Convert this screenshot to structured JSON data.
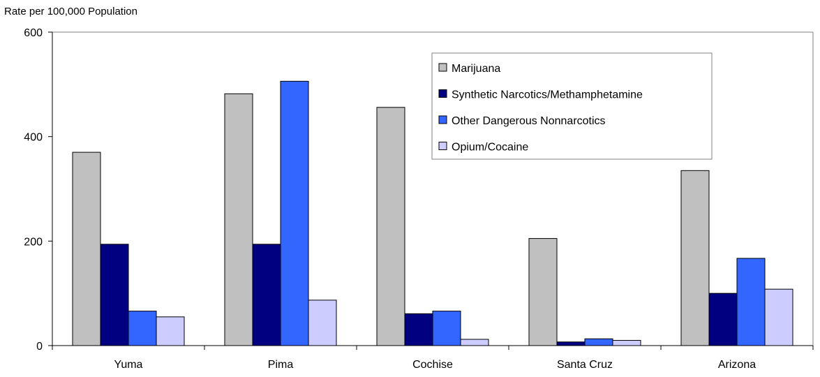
{
  "chart_data": {
    "type": "bar",
    "title": "",
    "xlabel": "",
    "ylabel": "Rate per 100,000 Population",
    "ylim": [
      0,
      600
    ],
    "yticks": [
      0,
      200,
      400,
      600
    ],
    "grid": false,
    "legend_position": "top-right",
    "categories": [
      "Yuma",
      "Pima",
      "Cochise",
      "Santa Cruz",
      "Arizona"
    ],
    "series": [
      {
        "name": "Marijuana",
        "color": "#c0c0c0",
        "values": [
          370,
          482,
          456,
          205,
          335
        ]
      },
      {
        "name": "Synthetic Narcotics/Methamphetamine",
        "color": "#000080",
        "values": [
          194,
          194,
          61,
          7,
          100
        ]
      },
      {
        "name": "Other Dangerous Nonnarcotics",
        "color": "#3366ff",
        "values": [
          66,
          506,
          66,
          13,
          167
        ]
      },
      {
        "name": "Opium/Cocaine",
        "color": "#ccccff",
        "values": [
          55,
          87,
          12,
          10,
          108
        ]
      }
    ]
  }
}
